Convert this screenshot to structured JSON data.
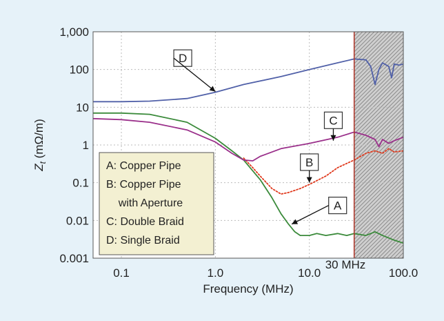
{
  "chart_data": {
    "type": "line",
    "xscale": "log",
    "yscale": "log",
    "xlim": [
      0.05,
      100
    ],
    "ylim": [
      0.001,
      1000
    ],
    "xlabel": "Frequency (MHz)",
    "ylabel_main": "Z",
    "ylabel_sub": "t",
    "ylabel_unit": " (mΩ/m)",
    "x_ticks": [
      {
        "value": 0.1,
        "label": "0.1"
      },
      {
        "value": 1.0,
        "label": "1.0"
      },
      {
        "value": 10.0,
        "label": "10.0"
      },
      {
        "value": 100.0,
        "label": "100.0"
      }
    ],
    "y_ticks": [
      {
        "value": 0.001,
        "label": "0.001"
      },
      {
        "value": 0.01,
        "label": "0.01"
      },
      {
        "value": 0.1,
        "label": "0.1"
      },
      {
        "value": 1,
        "label": "1"
      },
      {
        "value": 10,
        "label": "10"
      },
      {
        "value": 100,
        "label": "100"
      },
      {
        "value": 1000,
        "label": "1,000"
      }
    ],
    "grid": true,
    "marker_line": {
      "x": 30,
      "label": "30 MHz",
      "color": "#b03a2e"
    },
    "shaded_region": {
      "x_from": 30,
      "x_to": 100
    },
    "series": [
      {
        "id": "A",
        "color": "#3a8a3a",
        "style": "solid",
        "points": [
          [
            0.05,
            7
          ],
          [
            0.1,
            7
          ],
          [
            0.2,
            6.5
          ],
          [
            0.5,
            4
          ],
          [
            1,
            1.5
          ],
          [
            1.5,
            0.7
          ],
          [
            2,
            0.4
          ],
          [
            3,
            0.12
          ],
          [
            4,
            0.04
          ],
          [
            5,
            0.015
          ],
          [
            6,
            0.008
          ],
          [
            7,
            0.005
          ],
          [
            8,
            0.004
          ],
          [
            10,
            0.004
          ],
          [
            12,
            0.0045
          ],
          [
            15,
            0.004
          ],
          [
            20,
            0.0045
          ],
          [
            25,
            0.004
          ],
          [
            30,
            0.0045
          ],
          [
            40,
            0.004
          ],
          [
            50,
            0.005
          ],
          [
            60,
            0.004
          ],
          [
            80,
            0.003
          ],
          [
            100,
            0.0025
          ]
        ]
      },
      {
        "id": "B",
        "color": "#e03a1e",
        "style": "dotted",
        "points": [
          [
            2,
            0.45
          ],
          [
            2.5,
            0.25
          ],
          [
            3,
            0.15
          ],
          [
            4,
            0.07
          ],
          [
            5,
            0.05
          ],
          [
            6,
            0.055
          ],
          [
            8,
            0.07
          ],
          [
            10,
            0.09
          ],
          [
            15,
            0.15
          ],
          [
            20,
            0.25
          ],
          [
            30,
            0.4
          ],
          [
            40,
            0.6
          ],
          [
            50,
            0.7
          ],
          [
            60,
            0.6
          ],
          [
            70,
            0.8
          ],
          [
            80,
            0.65
          ],
          [
            100,
            0.7
          ]
        ]
      },
      {
        "id": "C",
        "color": "#9a2f8a",
        "style": "solid",
        "points": [
          [
            0.05,
            5
          ],
          [
            0.1,
            4.7
          ],
          [
            0.2,
            4
          ],
          [
            0.5,
            2.5
          ],
          [
            1,
            1.2
          ],
          [
            1.5,
            0.6
          ],
          [
            2,
            0.4
          ],
          [
            2.5,
            0.38
          ],
          [
            3,
            0.5
          ],
          [
            5,
            0.8
          ],
          [
            10,
            1.1
          ],
          [
            20,
            1.6
          ],
          [
            30,
            2.2
          ],
          [
            40,
            1.8
          ],
          [
            50,
            1.4
          ],
          [
            55,
            0.9
          ],
          [
            60,
            1.4
          ],
          [
            70,
            1.1
          ],
          [
            80,
            1.3
          ],
          [
            100,
            1.6
          ]
        ]
      },
      {
        "id": "D",
        "color": "#5060a8",
        "style": "solid",
        "points": [
          [
            0.05,
            14
          ],
          [
            0.1,
            14
          ],
          [
            0.2,
            14.5
          ],
          [
            0.5,
            17
          ],
          [
            1,
            25
          ],
          [
            2,
            40
          ],
          [
            5,
            65
          ],
          [
            10,
            100
          ],
          [
            20,
            150
          ],
          [
            30,
            190
          ],
          [
            40,
            180
          ],
          [
            45,
            120
          ],
          [
            50,
            40
          ],
          [
            55,
            100
          ],
          [
            60,
            150
          ],
          [
            70,
            120
          ],
          [
            75,
            60
          ],
          [
            80,
            140
          ],
          [
            90,
            130
          ],
          [
            100,
            140
          ]
        ]
      }
    ],
    "callouts": [
      {
        "label": "D",
        "box_x": 0.45,
        "box_y": 200,
        "arrow_to_x": 1.0,
        "arrow_to_y": 26
      },
      {
        "label": "C",
        "box_x": 18,
        "box_y": 4.5,
        "arrow_to_x": 18,
        "arrow_to_y": 1.3
      },
      {
        "label": "B",
        "box_x": 10,
        "box_y": 0.35,
        "arrow_to_x": 10,
        "arrow_to_y": 0.1
      },
      {
        "label": "A",
        "box_x": 20,
        "box_y": 0.025,
        "arrow_to_x": 6.5,
        "arrow_to_y": 0.008
      }
    ],
    "legend": {
      "position": "bottom-left",
      "lines": [
        "A: Copper Pipe",
        "B: Copper Pipe",
        "    with Aperture",
        "C: Double Braid",
        "D: Single Braid"
      ]
    }
  }
}
